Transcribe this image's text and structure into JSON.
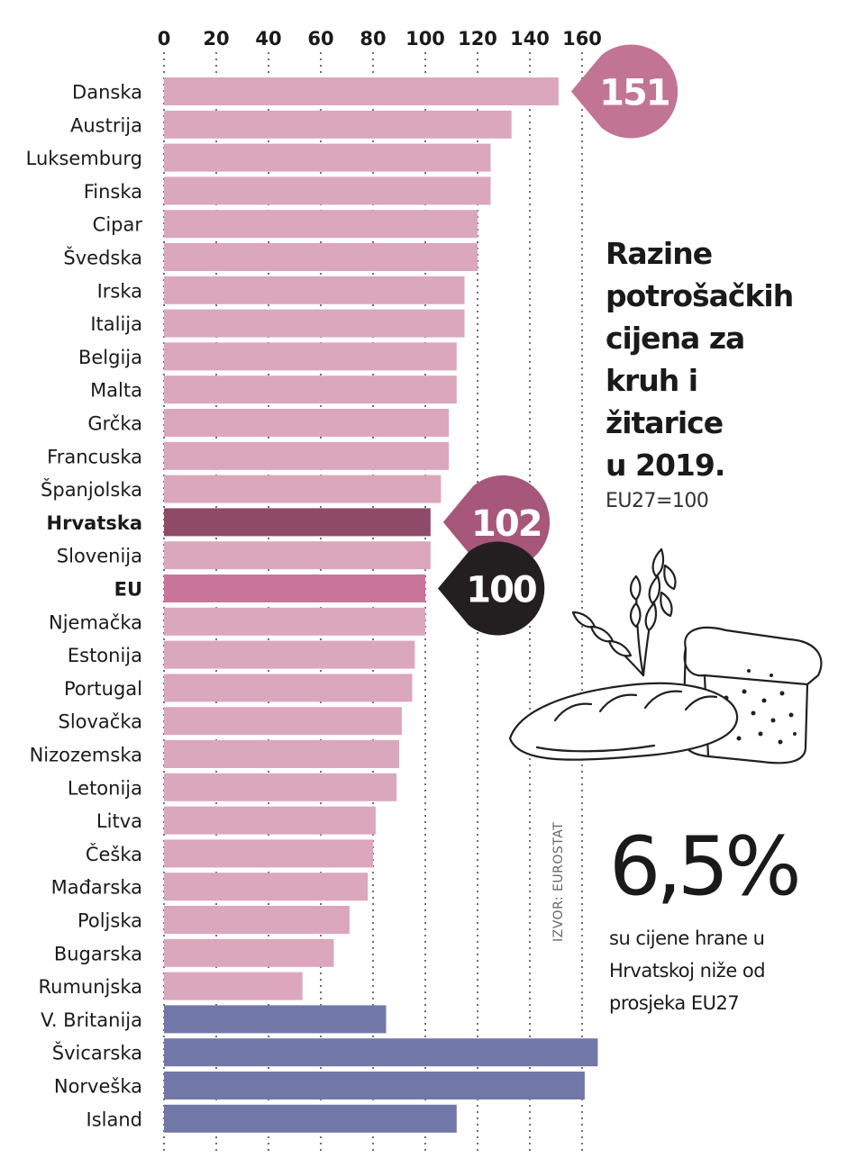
{
  "chart_data": {
    "type": "bar",
    "orientation": "horizontal",
    "title": "Razine potrošačkih cijena za kruh i žitarice u 2019.",
    "subtitle": "EU27=100",
    "x_ticks": [
      "0",
      "20",
      "40",
      "60",
      "80",
      "100",
      "120",
      "140",
      "160"
    ],
    "xlim": [
      0,
      160
    ],
    "grid": "vertical dotted",
    "categories": [
      "Danska",
      "Austrija",
      "Luksemburg",
      "Finska",
      "Cipar",
      "Švedska",
      "Irska",
      "Italija",
      "Belgija",
      "Malta",
      "Grčka",
      "Francuska",
      "Španjolska",
      "Hrvatska",
      "Slovenija",
      "EU",
      "Njemačka",
      "Estonija",
      "Portugal",
      "Slovačka",
      "Nizozemska",
      "Letonija",
      "Litva",
      "Češka",
      "Mađarska",
      "Poljska",
      "Bugarska",
      "Rumunjska",
      "V. Britanija",
      "Švicarska",
      "Norveška",
      "Island"
    ],
    "values": [
      151,
      133,
      125,
      125,
      120,
      120,
      115,
      115,
      112,
      112,
      109,
      109,
      106,
      102,
      102,
      100,
      100,
      96,
      95,
      91,
      90,
      89,
      81,
      80,
      78,
      71,
      65,
      53,
      85,
      166,
      161,
      112
    ],
    "bar_groups": [
      "eu",
      "eu",
      "eu",
      "eu",
      "eu",
      "eu",
      "eu",
      "eu",
      "eu",
      "eu",
      "eu",
      "eu",
      "eu",
      "croatia",
      "eu",
      "euavg",
      "eu",
      "eu",
      "eu",
      "eu",
      "eu",
      "eu",
      "eu",
      "eu",
      "eu",
      "eu",
      "eu",
      "eu",
      "noneu",
      "noneu",
      "noneu",
      "noneu"
    ],
    "bold_categories": [
      "Hrvatska",
      "EU"
    ],
    "callouts": [
      {
        "label": "151",
        "category": "Danska",
        "color": "#c27495"
      },
      {
        "label": "102",
        "category": "Hrvatska",
        "color": "#a6577a"
      },
      {
        "label": "100",
        "category": "EU",
        "color": "#231f20"
      }
    ],
    "colors": {
      "eu": "#dba7bd",
      "croatia": "#8f4a68",
      "euavg": "#c9759a",
      "noneu": "#7178a8",
      "grid": "#333333"
    }
  },
  "title": "Razine potrošačkih cijena za kruh i žitarice u 2019.",
  "title_lines": [
    "Razine",
    "potrošačkih",
    "cijena za",
    "kruh i",
    "žitarice",
    "u 2019."
  ],
  "subtitle": "EU27=100",
  "highlight": {
    "value": "6,5%",
    "lines": [
      "su cijene hrane u",
      "Hrvatskoj niže od",
      "prosjeka EU27"
    ]
  },
  "source": "IZVOR: EUROSTAT",
  "illustration": "bread-and-wheat-icon"
}
